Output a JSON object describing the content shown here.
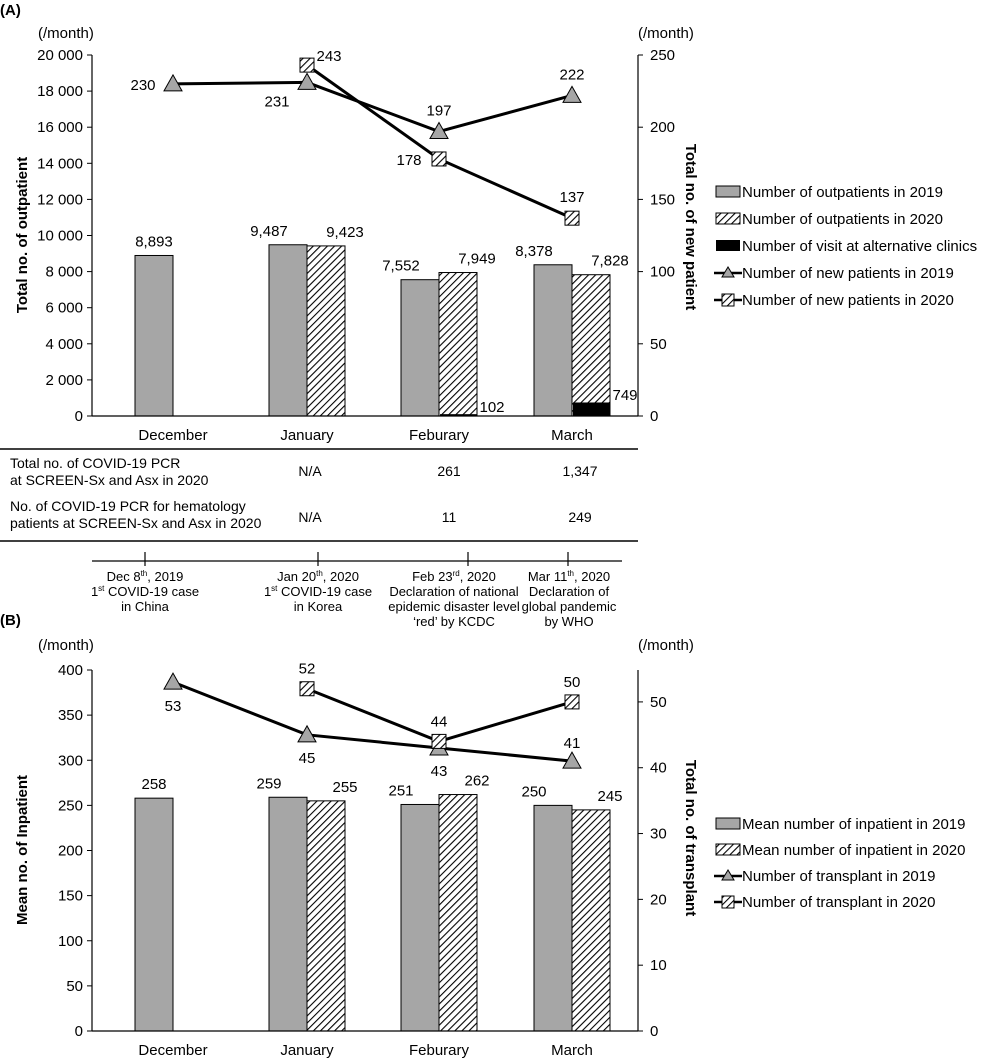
{
  "colors": {
    "bar2019": "#a6a6a6",
    "alt": "#000000",
    "marker2019": "#a6a6a6",
    "hatch": "#000000"
  },
  "chart_data": [
    {
      "type": "bar+line",
      "panel": "(A)",
      "categories": [
        "December",
        "January",
        "Feburary",
        "March"
      ],
      "y_left": {
        "label": "Total no. of outpatient",
        "unit": "(/month)",
        "lim": [
          0,
          20000
        ],
        "ticks": [
          "0",
          "2 000",
          "4 000",
          "6 000",
          "8 000",
          "10 000",
          "12 000",
          "14 000",
          "16 000",
          "18 000",
          "20 000"
        ]
      },
      "y_right": {
        "label": "Total no. of new patient",
        "unit": "(/month)",
        "lim": [
          0,
          250
        ],
        "ticks": [
          "0",
          "50",
          "100",
          "150",
          "200",
          "250"
        ]
      },
      "bars": [
        {
          "name": "Number of outpatients in 2019",
          "values": [
            8893,
            9487,
            7552,
            8378
          ],
          "labels": [
            "8,893",
            "9,487",
            "7,552",
            "8,378"
          ]
        },
        {
          "name": "Number of outpatients in 2020",
          "values": [
            null,
            9423,
            7949,
            7828
          ],
          "labels": [
            "",
            "9,423",
            "7,949",
            "7,828"
          ]
        },
        {
          "name": "Number of visit at alternative clinics",
          "values": [
            null,
            null,
            102,
            749
          ],
          "labels": [
            "",
            "",
            "102",
            "749"
          ]
        }
      ],
      "lines": [
        {
          "name": "Number of new patients in 2019",
          "values": [
            230,
            231,
            197,
            222
          ]
        },
        {
          "name": "Number of new patients in 2020",
          "values": [
            null,
            243,
            178,
            137
          ]
        }
      ],
      "legend": [
        "Number of outpatients in 2019",
        "Number of outpatients in 2020",
        "Number of visit at alternative clinics",
        "Number of new patients in 2019",
        "Number of new patients in 2020"
      ],
      "legend_position": "right"
    },
    {
      "type": "bar+line",
      "panel": "(B)",
      "categories": [
        "December",
        "January",
        "Feburary",
        "March"
      ],
      "y_left": {
        "label": "Mean no. of Inpatient",
        "unit": "(/month)",
        "lim": [
          0,
          400
        ],
        "ticks": [
          "0",
          "50",
          "100",
          "150",
          "200",
          "250",
          "300",
          "350",
          "400"
        ]
      },
      "y_right": {
        "label": "Total no. of transplant",
        "unit": "(/month)",
        "lim": [
          0,
          55
        ],
        "ticks": [
          "0",
          "10",
          "20",
          "30",
          "40",
          "50"
        ]
      },
      "bars": [
        {
          "name": "Mean number of inpatient in 2019",
          "values": [
            258,
            259,
            251,
            250
          ],
          "labels": [
            "258",
            "259",
            "251",
            "250"
          ]
        },
        {
          "name": "Mean number of inpatient in 2020",
          "values": [
            null,
            255,
            262,
            245
          ],
          "labels": [
            "",
            "255",
            "262",
            "245"
          ]
        }
      ],
      "lines": [
        {
          "name": "Number of transplant in 2019",
          "values": [
            53,
            45,
            43,
            41
          ]
        },
        {
          "name": "Number of transplant in 2020",
          "values": [
            null,
            52,
            44,
            50
          ]
        }
      ],
      "legend": [
        "Mean number of inpatient in 2019",
        "Mean number of inpatient in 2020",
        "Number of transplant in 2019",
        "Number of transplant in 2020"
      ],
      "legend_position": "right"
    }
  ],
  "pcr_table": {
    "rows": [
      {
        "label_line1": "Total no. of COVID-19 PCR",
        "label_line2": "at SCREEN-Sx and Asx in 2020",
        "values": [
          "N/A",
          "261",
          "1,347"
        ]
      },
      {
        "label_line1": "No. of COVID-19 PCR for hematology",
        "label_line2": "patients at SCREEN-Sx and Asx in 2020",
        "values": [
          "N/A",
          "11",
          "249"
        ]
      }
    ]
  },
  "timeline": [
    {
      "date": "Dec 8",
      "sup": "th",
      "year": ", 2019",
      "lines": [
        [
          "1",
          "st",
          " COVID-19 case"
        ],
        "in China"
      ]
    },
    {
      "date": "Jan 20",
      "sup": "th",
      "year": ", 2020",
      "lines": [
        [
          "1",
          "st",
          " COVID-19 case"
        ],
        "in Korea"
      ]
    },
    {
      "date": "Feb 23",
      "sup": "rd",
      "year": ", 2020",
      "lines": [
        "Declaration of national",
        "epidemic disaster level",
        "‘red’ by KCDC"
      ]
    },
    {
      "date": "Mar 11",
      "sup": "th",
      "year": ", 2020",
      "lines": [
        "Declaration of",
        "global pandemic",
        "by WHO"
      ]
    }
  ]
}
